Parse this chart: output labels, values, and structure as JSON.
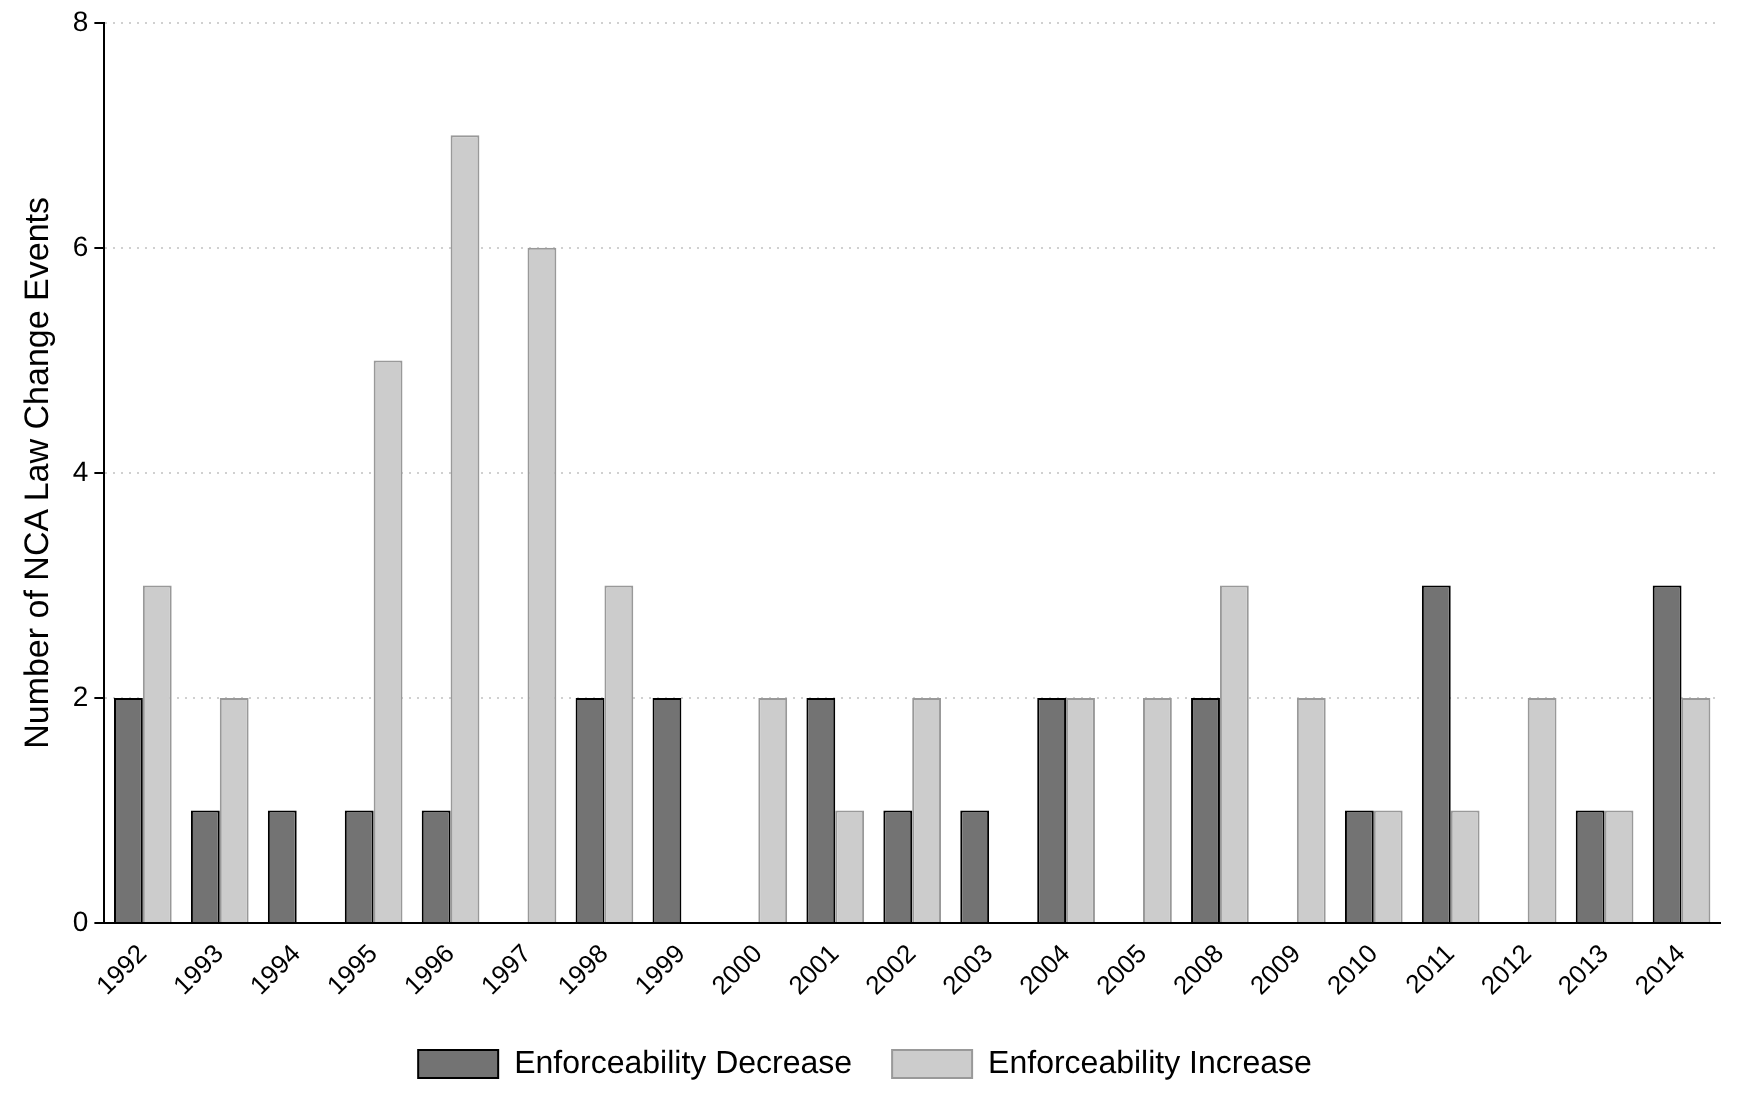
{
  "chart_data": {
    "type": "bar",
    "ylabel": "Number of NCA Law Change Events",
    "categories": [
      "1992",
      "1993",
      "1994",
      "1995",
      "1996",
      "1997",
      "1998",
      "1999",
      "2000",
      "2001",
      "2002",
      "2003",
      "2004",
      "2005",
      "2008",
      "2009",
      "2010",
      "2011",
      "2012",
      "2013",
      "2014"
    ],
    "series": [
      {
        "name": "Enforceability Decrease",
        "color": "#737373",
        "values": [
          2,
          1,
          1,
          1,
          1,
          0,
          2,
          2,
          0,
          2,
          1,
          1,
          2,
          0,
          2,
          0,
          1,
          3,
          0,
          1,
          3
        ]
      },
      {
        "name": "Enforceability Increase",
        "color": "#cccccc",
        "values": [
          3,
          2,
          0,
          5,
          7,
          6,
          3,
          0,
          2,
          1,
          2,
          0,
          2,
          2,
          3,
          2,
          1,
          1,
          2,
          1,
          2
        ]
      }
    ],
    "ylim": [
      0,
      8
    ],
    "yticks": [
      0,
      2,
      4,
      6,
      8
    ],
    "grid": "y",
    "legend": "bottom"
  }
}
